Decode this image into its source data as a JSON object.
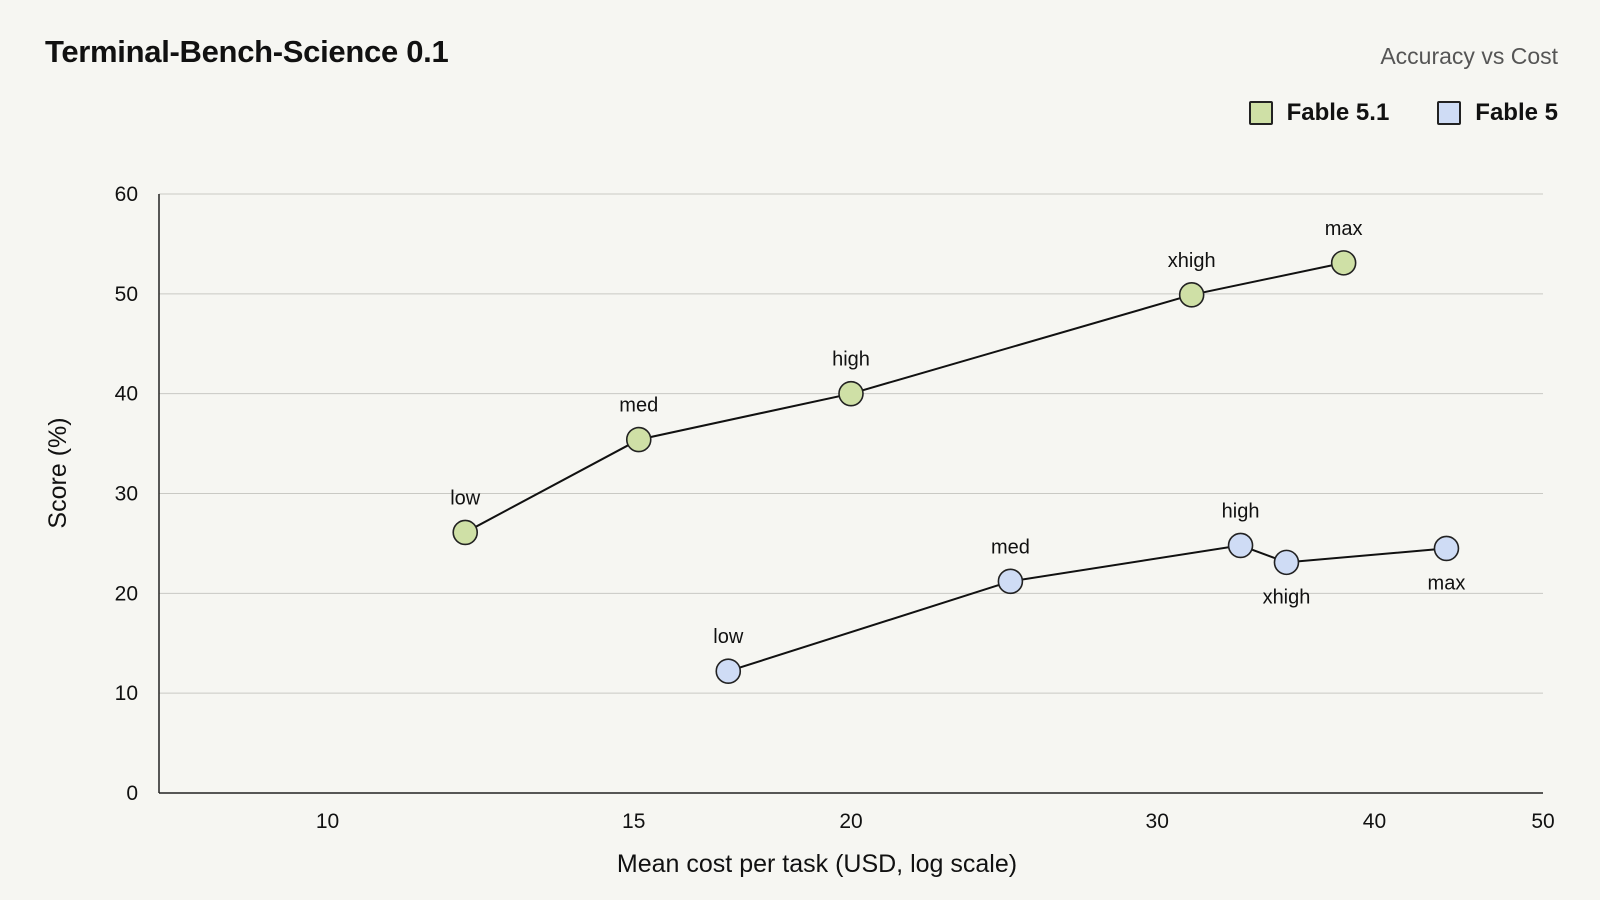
{
  "title": "Terminal-Bench-Science 0.1",
  "subtitle": "Accuracy vs Cost",
  "legend": [
    {
      "label": "Fable 5.1",
      "color": "#cfe0a6"
    },
    {
      "label": "Fable 5",
      "color": "#cfdcf5"
    }
  ],
  "chart_data": {
    "type": "scatter",
    "title": "Terminal-Bench-Science 0.1",
    "subtitle": "Accuracy vs Cost",
    "xlabel": "Mean cost per task (USD, log scale)",
    "ylabel": "Score (%)",
    "x_scale": "log",
    "xlim": [
      8,
      50
    ],
    "ylim": [
      0,
      60
    ],
    "x_ticks": [
      10,
      15,
      20,
      30,
      40,
      50
    ],
    "y_ticks": [
      0,
      10,
      20,
      30,
      40,
      50,
      60
    ],
    "grid": "horizontal",
    "legend_position": "top-right",
    "lines_connected": true,
    "series": [
      {
        "name": "Fable 5.1",
        "color": "#cfe0a6",
        "points": [
          {
            "label": "low",
            "x": 12.0,
            "y": 26.1
          },
          {
            "label": "med",
            "x": 15.1,
            "y": 35.4
          },
          {
            "label": "high",
            "x": 20.0,
            "y": 40.0
          },
          {
            "label": "xhigh",
            "x": 31.4,
            "y": 49.9
          },
          {
            "label": "max",
            "x": 38.4,
            "y": 53.1
          }
        ]
      },
      {
        "name": "Fable 5",
        "color": "#cfdcf5",
        "points": [
          {
            "label": "low",
            "x": 17.0,
            "y": 12.2
          },
          {
            "label": "med",
            "x": 24.7,
            "y": 21.2
          },
          {
            "label": "high",
            "x": 33.5,
            "y": 24.8
          },
          {
            "label": "xhigh",
            "x": 35.6,
            "y": 23.1
          },
          {
            "label": "max",
            "x": 44.0,
            "y": 24.5
          }
        ]
      }
    ]
  }
}
